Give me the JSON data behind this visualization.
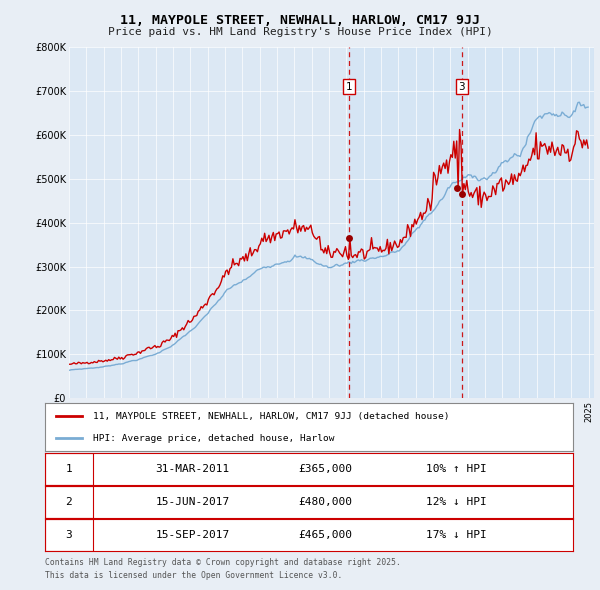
{
  "title1": "11, MAYPOLE STREET, NEWHALL, HARLOW, CM17 9JJ",
  "title2": "Price paid vs. HM Land Registry's House Price Index (HPI)",
  "legend_label_red": "11, MAYPOLE STREET, NEWHALL, HARLOW, CM17 9JJ (detached house)",
  "legend_label_blue": "HPI: Average price, detached house, Harlow",
  "transactions": [
    {
      "label": "1",
      "date": "2011-03-31",
      "price": 365000,
      "note": "10% ↑ HPI"
    },
    {
      "label": "2",
      "date": "2017-06-15",
      "price": 480000,
      "note": "12% ↓ HPI"
    },
    {
      "label": "3",
      "date": "2017-09-15",
      "price": 465000,
      "note": "17% ↓ HPI"
    }
  ],
  "footnote1": "Contains HM Land Registry data © Crown copyright and database right 2025.",
  "footnote2": "This data is licensed under the Open Government Licence v3.0.",
  "ylim": [
    0,
    800000
  ],
  "yticks": [
    0,
    100000,
    200000,
    300000,
    400000,
    500000,
    600000,
    700000,
    800000
  ],
  "ytick_labels": [
    "£0",
    "£100K",
    "£200K",
    "£300K",
    "£400K",
    "£500K",
    "£600K",
    "£700K",
    "£800K"
  ],
  "bg_color": "#e8eef5",
  "plot_bg": "#dce8f4",
  "red_color": "#cc0000",
  "blue_color": "#7aacd4",
  "dot_color": "#990000",
  "vline_color": "#cc0000",
  "box_color": "#cc0000",
  "shade_color": "#d0e4f4"
}
